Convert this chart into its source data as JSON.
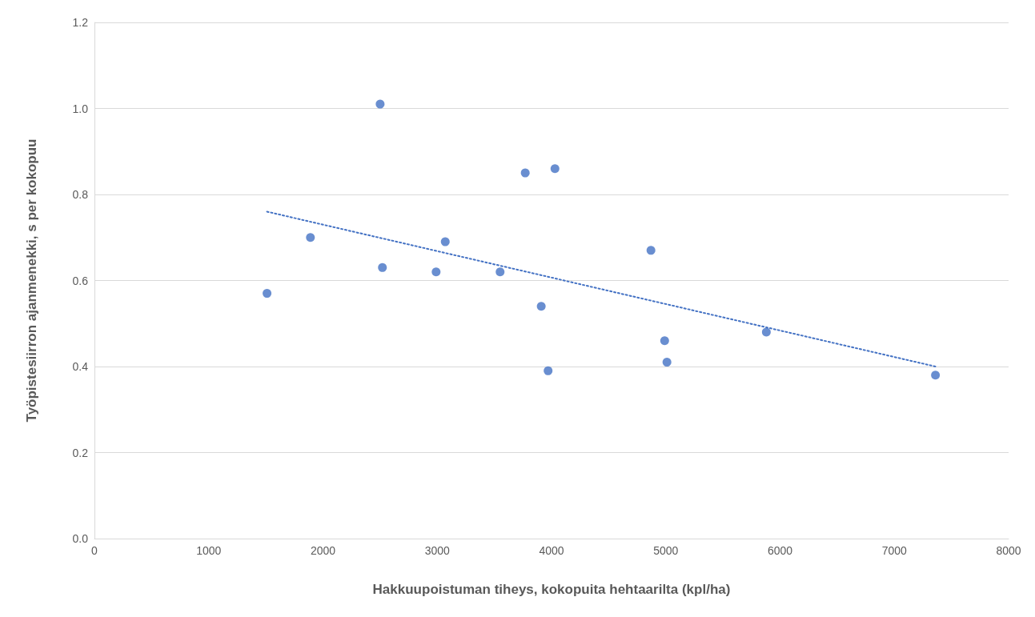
{
  "chart_data": {
    "type": "scatter",
    "xlabel": "Hakkuupoistuman tiheys, kokopuita hehtaarilta (kpl/ha)",
    "ylabel": "Työpistesiirron ajanmenekki, s per kokopuu",
    "xlim": [
      0,
      8000
    ],
    "xticks": [
      0,
      1000,
      2000,
      3000,
      4000,
      5000,
      6000,
      7000,
      8000
    ],
    "ylim": [
      0,
      1.2
    ],
    "yticks": [
      {
        "value": 0,
        "label": "0.0"
      },
      {
        "value": 0.2,
        "label": "0.2"
      },
      {
        "value": 0.4,
        "label": "0.4"
      },
      {
        "value": 0.6,
        "label": "0.6"
      },
      {
        "value": 0.8,
        "label": "0.8"
      },
      {
        "value": 1.0,
        "label": "1.0"
      },
      {
        "value": 1.2,
        "label": "1.2"
      }
    ],
    "grid": "y",
    "series": [
      {
        "color": "#4472c4",
        "marker": "circle",
        "x": [
          1510,
          1890,
          2500,
          2520,
          2990,
          3070,
          3550,
          3770,
          3910,
          3970,
          4030,
          4870,
          4990,
          5010,
          5880,
          7360
        ],
        "values": [
          0.57,
          0.7,
          1.01,
          0.63,
          0.62,
          0.69,
          0.62,
          0.85,
          0.54,
          0.39,
          0.86,
          0.67,
          0.46,
          0.41,
          0.48,
          0.38
        ]
      },
      {
        "type": "line",
        "color": "#4472c4",
        "marker": "none",
        "line_style": "dotted",
        "x": [
          1510,
          7360
        ],
        "values": [
          0.76,
          0.4
        ]
      }
    ]
  }
}
